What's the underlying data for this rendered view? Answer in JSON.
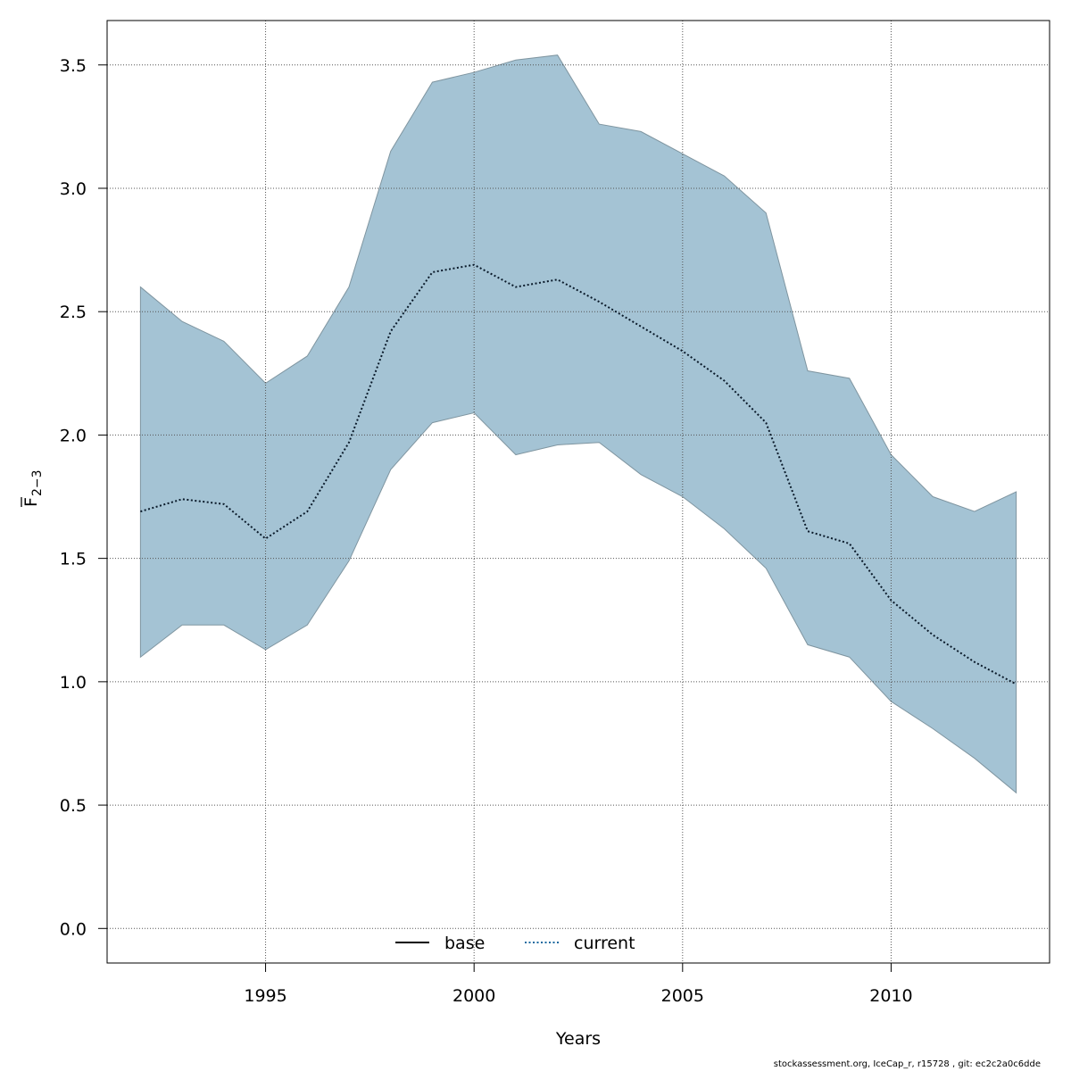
{
  "chart_data": {
    "type": "area",
    "xlabel": "Years",
    "ylabel_main": "F",
    "ylabel_sub": "2−3",
    "xlim": [
      1991.2,
      2013.8
    ],
    "ylim": [
      -0.14,
      3.68
    ],
    "grid": true,
    "x_ticks": [
      1995,
      2000,
      2005,
      2010
    ],
    "y_ticks": [
      0.0,
      0.5,
      1.0,
      1.5,
      2.0,
      2.5,
      3.0,
      3.5
    ],
    "y_tick_labels": [
      "0.0",
      "0.5",
      "1.0",
      "1.5",
      "2.0",
      "2.5",
      "3.0",
      "3.5"
    ],
    "x": [
      1992,
      1993,
      1994,
      1995,
      1996,
      1997,
      1998,
      1999,
      2000,
      2001,
      2002,
      2003,
      2004,
      2005,
      2006,
      2007,
      2008,
      2009,
      2010,
      2011,
      2012,
      2013
    ],
    "series": [
      {
        "name": "current",
        "style": "dotted",
        "color": "#0a1a2a",
        "values": [
          1.69,
          1.74,
          1.72,
          1.58,
          1.69,
          1.97,
          2.42,
          2.66,
          2.69,
          2.6,
          2.63,
          2.54,
          2.44,
          2.34,
          2.22,
          2.05,
          1.61,
          1.56,
          1.33,
          1.19,
          1.08,
          0.99
        ]
      }
    ],
    "confidence_band": {
      "color": "#a4c3d4",
      "edge_color": "#7f95a0",
      "lower": [
        1.1,
        1.23,
        1.23,
        1.13,
        1.23,
        1.49,
        1.86,
        2.05,
        2.09,
        1.92,
        1.96,
        1.97,
        1.84,
        1.75,
        1.62,
        1.46,
        1.15,
        1.1,
        0.92,
        0.81,
        0.69,
        0.55
      ],
      "upper": [
        2.6,
        2.46,
        2.38,
        2.21,
        2.32,
        2.6,
        3.15,
        3.43,
        3.47,
        3.52,
        3.54,
        3.26,
        3.23,
        3.14,
        3.05,
        2.9,
        2.26,
        2.23,
        1.92,
        1.75,
        1.69,
        1.77
      ]
    },
    "legend": {
      "position": "bottom-center",
      "entries": [
        {
          "label": "base",
          "style": "solid",
          "color": "#000000"
        },
        {
          "label": "current",
          "style": "dotted",
          "color": "#1a6aa0"
        }
      ]
    }
  },
  "footer": "stockassessment.org, IceCap_r, r15728 , git: ec2c2a0c6dde"
}
